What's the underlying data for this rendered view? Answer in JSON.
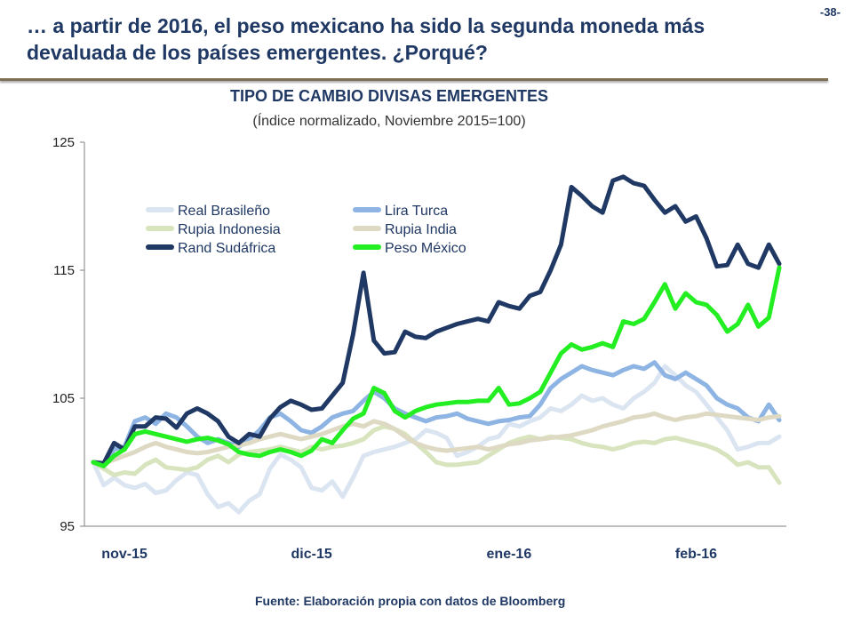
{
  "slide": {
    "title": "… a partir de 2016, el peso mexicano ha sido la segunda moneda más devaluada de los países emergentes. ¿Porqué?",
    "page_number": "-38-",
    "source": "Fuente: Elaboración propia con datos de Bloomberg"
  },
  "chart_data": {
    "type": "line",
    "title": "TIPO DE CAMBIO DIVISAS EMERGENTES",
    "subtitle": "(Índice normalizado, Noviembre 2015=100)",
    "xlabel": "",
    "ylabel": "",
    "ylim": [
      95,
      125
    ],
    "yticks": [
      95,
      105,
      115,
      125
    ],
    "x": [
      0,
      1,
      2,
      3,
      4,
      5,
      6,
      7,
      8,
      9,
      10,
      11,
      12,
      13,
      14,
      15,
      16,
      17,
      18,
      19,
      20,
      21,
      22,
      23,
      24,
      25,
      26,
      27,
      28,
      29,
      30,
      31,
      32,
      33,
      34,
      35,
      36,
      37,
      38,
      39,
      40,
      41,
      42,
      43,
      44,
      45,
      46,
      47,
      48,
      49,
      50,
      51,
      52,
      53,
      54,
      55,
      56,
      57,
      58,
      59,
      60,
      61,
      62,
      63,
      64,
      65,
      66
    ],
    "xticks": [
      {
        "x": 3,
        "label": "nov-15"
      },
      {
        "x": 21,
        "label": "dic-15"
      },
      {
        "x": 40,
        "label": "ene-16"
      },
      {
        "x": 58,
        "label": "feb-16"
      }
    ],
    "grid": false,
    "legend": "top-left, two columns",
    "series": [
      {
        "name": "Real Brasileño",
        "color": "#dbe5f1",
        "values": [
          100,
          98.2,
          98.8,
          98.2,
          98.0,
          98.3,
          97.6,
          97.8,
          98.6,
          99.2,
          99.0,
          97.5,
          96.5,
          96.8,
          96.1,
          97.0,
          97.5,
          99.5,
          100.6,
          100.2,
          99.6,
          98.0,
          97.8,
          98.5,
          97.3,
          98.8,
          100.5,
          100.8,
          101.0,
          101.2,
          101.5,
          101.8,
          102.5,
          102.3,
          101.9,
          100.5,
          100.8,
          101.2,
          101.8,
          102.0,
          103.0,
          102.8,
          103.2,
          103.5,
          104.2,
          104.0,
          104.5,
          105.2,
          104.8,
          105.0,
          104.5,
          104.2,
          105.0,
          105.5,
          106.2,
          107.5,
          106.8,
          106.0,
          105.5,
          104.5,
          103.5,
          102.5,
          101.0,
          101.2,
          101.5,
          101.5,
          102.0
        ]
      },
      {
        "name": "Lira Turca",
        "color": "#8eb4e3",
        "values": [
          100,
          99.8,
          101.0,
          101.2,
          103.2,
          103.5,
          103.0,
          103.8,
          103.5,
          102.8,
          102.0,
          101.5,
          101.8,
          101.5,
          101.2,
          101.8,
          102.5,
          103.5,
          103.8,
          103.2,
          102.5,
          102.3,
          102.8,
          103.5,
          103.8,
          104.0,
          104.8,
          105.5,
          105.0,
          104.2,
          103.8,
          103.5,
          103.2,
          103.5,
          103.6,
          103.8,
          103.4,
          103.2,
          103.0,
          103.2,
          103.3,
          103.5,
          103.6,
          104.5,
          105.8,
          106.5,
          107.0,
          107.5,
          107.2,
          107.0,
          106.8,
          107.2,
          107.5,
          107.3,
          107.8,
          106.8,
          106.5,
          107.0,
          106.5,
          106.0,
          105.0,
          104.5,
          104.2,
          103.5,
          103.2,
          104.5,
          103.3
        ]
      },
      {
        "name": "Rupia Indonesia",
        "color": "#d7e4bd",
        "values": [
          100,
          99.5,
          99.0,
          99.2,
          99.1,
          99.8,
          100.2,
          99.6,
          99.5,
          99.4,
          99.6,
          100.2,
          100.5,
          100.0,
          100.6,
          100.8,
          100.9,
          101.0,
          101.2,
          101.0,
          100.8,
          101.2,
          101.0,
          101.2,
          101.3,
          101.5,
          101.8,
          102.5,
          102.8,
          102.6,
          102.2,
          101.5,
          100.8,
          100.0,
          99.8,
          99.8,
          99.9,
          100.0,
          100.5,
          101.0,
          101.5,
          101.8,
          102.0,
          101.8,
          102.0,
          101.9,
          101.8,
          101.5,
          101.3,
          101.2,
          101.0,
          101.2,
          101.5,
          101.6,
          101.5,
          101.8,
          101.9,
          101.7,
          101.5,
          101.3,
          101.0,
          100.5,
          99.8,
          100.0,
          99.6,
          99.6,
          98.4
        ]
      },
      {
        "name": "Rupia India",
        "color": "#ddd9c3",
        "values": [
          100,
          99.9,
          100.2,
          100.5,
          100.8,
          101.2,
          101.5,
          101.2,
          101.0,
          100.8,
          100.7,
          100.8,
          101.0,
          101.2,
          101.3,
          101.5,
          101.8,
          102.0,
          102.2,
          102.0,
          101.8,
          102.0,
          102.2,
          102.5,
          102.8,
          103.0,
          102.8,
          103.2,
          103.0,
          102.6,
          102.0,
          101.5,
          101.2,
          101.0,
          100.9,
          101.0,
          101.1,
          101.2,
          101.0,
          101.2,
          101.4,
          101.5,
          101.7,
          101.8,
          101.9,
          102.0,
          102.1,
          102.3,
          102.5,
          102.8,
          103.0,
          103.2,
          103.5,
          103.6,
          103.8,
          103.5,
          103.3,
          103.5,
          103.6,
          103.8,
          103.7,
          103.6,
          103.5,
          103.4,
          103.3,
          103.5,
          103.6
        ]
      },
      {
        "name": "Rand Sudáfrica",
        "color": "#1f3864",
        "values": [
          100,
          99.9,
          101.5,
          101.0,
          102.8,
          102.8,
          103.5,
          103.4,
          102.7,
          103.8,
          104.2,
          103.8,
          103.2,
          102.0,
          101.5,
          102.2,
          102.0,
          103.4,
          104.3,
          104.8,
          104.5,
          104.1,
          104.2,
          105.2,
          106.2,
          110.0,
          114.8,
          109.5,
          108.5,
          108.6,
          110.2,
          109.8,
          109.7,
          110.2,
          110.5,
          110.8,
          111.0,
          111.2,
          111.0,
          112.5,
          112.2,
          112.0,
          113.0,
          113.3,
          115.0,
          117.0,
          121.5,
          120.8,
          120.0,
          119.5,
          122.0,
          122.3,
          121.8,
          121.6,
          120.5,
          119.5,
          120.0,
          118.8,
          119.2,
          117.5,
          115.3,
          115.4,
          117.0,
          115.5,
          115.2,
          117.0,
          115.5
        ]
      },
      {
        "name": "Peso México",
        "color": "#22ee22",
        "values": [
          100,
          99.7,
          100.5,
          101.0,
          102.2,
          102.4,
          102.2,
          102.0,
          101.8,
          101.6,
          101.8,
          101.9,
          101.7,
          101.4,
          100.8,
          100.6,
          100.5,
          100.8,
          101.0,
          100.8,
          100.5,
          100.9,
          101.8,
          101.5,
          102.5,
          103.4,
          103.8,
          105.8,
          105.4,
          104.0,
          103.5,
          104.0,
          104.3,
          104.5,
          104.6,
          104.7,
          104.7,
          104.8,
          104.8,
          105.8,
          104.5,
          104.6,
          105.0,
          105.5,
          107.0,
          108.5,
          109.2,
          108.8,
          109.0,
          109.3,
          109.0,
          111.0,
          110.8,
          111.2,
          112.5,
          113.9,
          112.0,
          113.2,
          112.5,
          112.3,
          111.5,
          110.2,
          110.8,
          112.3,
          110.6,
          111.3,
          115.2
        ]
      }
    ]
  }
}
